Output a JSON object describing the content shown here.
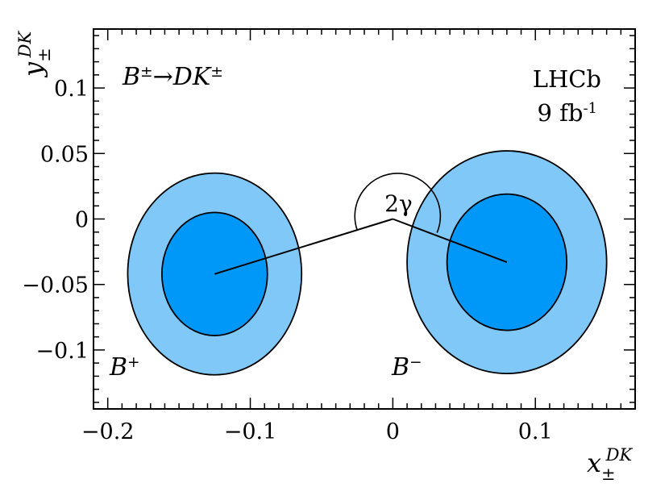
{
  "chart_data": {
    "type": "scatter",
    "title": "",
    "process_label": "B±→DK±",
    "experiment_label": "LHCb",
    "luminosity_label": "9 fb-1",
    "angle_label": "2γ",
    "xlabel": "x±DK",
    "ylabel": "y±DK",
    "xlim": [
      -0.21,
      0.17
    ],
    "ylim": [
      -0.145,
      0.145
    ],
    "x_ticks": [
      -0.2,
      -0.1,
      0,
      0.1
    ],
    "x_tick_labels": [
      "−0.2",
      "−0.1",
      "0",
      "0.1"
    ],
    "y_ticks": [
      -0.1,
      -0.05,
      0,
      0.05,
      0.1
    ],
    "y_tick_labels": [
      "−0.1",
      "−0.05",
      "0",
      "0.05",
      "0.1"
    ],
    "grid": false,
    "colors": {
      "outer_contour": "#80c8f8",
      "inner_contour": "#0098f8",
      "outline": "#000000"
    },
    "series": [
      {
        "name": "B+",
        "center": [
          -0.125,
          -0.042
        ],
        "contour_inner": {
          "rx": 0.037,
          "ry": 0.047
        },
        "contour_outer": {
          "rx": 0.061,
          "ry": 0.077
        }
      },
      {
        "name": "B−",
        "center": [
          0.08,
          -0.033
        ],
        "contour_inner": {
          "rx": 0.042,
          "ry": 0.052
        },
        "contour_outer": {
          "rx": 0.07,
          "ry": 0.085
        }
      }
    ],
    "angle_arc": {
      "center": [
        0,
        0
      ],
      "radius": 0.03
    }
  }
}
